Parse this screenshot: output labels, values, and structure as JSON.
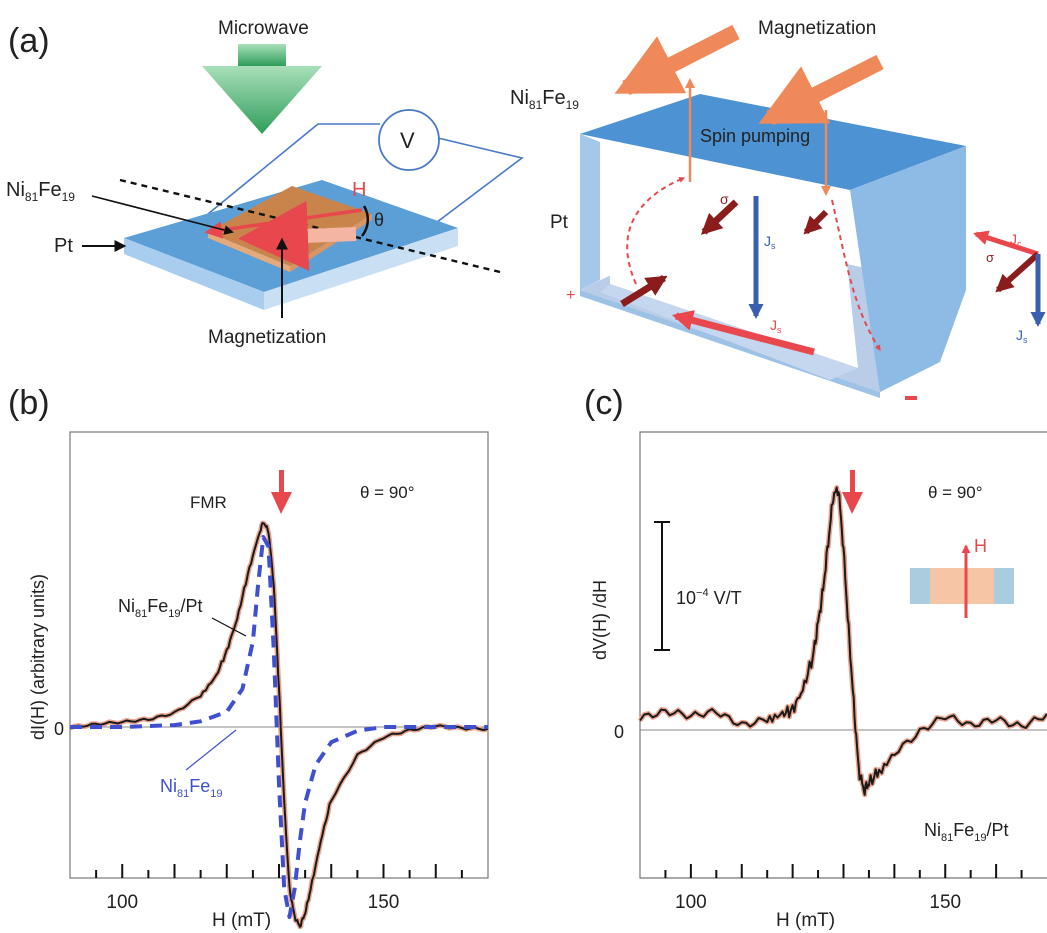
{
  "panels": {
    "a": "(a)",
    "b": "(b)",
    "c": "(c)"
  },
  "diagram_left": {
    "microwave": "Microwave",
    "voltmeter": "V",
    "nife_label": "Ni",
    "nife_sub1": "81",
    "nife_mid": "Fe",
    "nife_sub2": "19",
    "pt_label": "Pt",
    "h_label": "H",
    "theta_label": "θ",
    "magnetization": "Magnetization"
  },
  "diagram_right": {
    "magnetization": "Magnetization",
    "nife_label": "Ni",
    "nife_sub1": "81",
    "nife_mid": "Fe",
    "nife_sub2": "19",
    "spin_pumping": "Spin pumping",
    "pt_label": "Pt",
    "sigma": "σ",
    "js": "J",
    "js_sub": "s",
    "jc": "J",
    "jc_sub": "c",
    "plus": "+",
    "minus": "−"
  },
  "colors": {
    "blue_layer": "#5b9fd6",
    "blue_light": "#a8cdee",
    "orange_arrow": "#f0895a",
    "red_arrow": "#e8484d",
    "dark_red": "#8a1c1c",
    "spin_blue": "#3a5fb0",
    "green": "#3dae6a",
    "dashed_fit": "#3f4fd0"
  },
  "chart_data": [
    {
      "type": "line",
      "panel": "b",
      "xlabel": "H (mT)",
      "ylabel": "dI(H) (arbitrary units)",
      "xlim": [
        90,
        170
      ],
      "x_ticks": [
        100,
        150
      ],
      "y_tick_label": "0",
      "annotation_theta": "θ = 90°",
      "annotation_fmr": "FMR",
      "fmr_arrow_x": 130,
      "series": [
        {
          "name": "Ni81Fe19/Pt",
          "label_main": "Ni",
          "label_sub1": "81",
          "label_mid": "Fe",
          "label_sub2": "19",
          "label_tail": "/Pt",
          "style": "solid",
          "x": [
            90,
            95,
            100,
            105,
            110,
            115,
            118,
            120,
            122,
            124,
            126,
            127,
            128,
            129,
            130,
            131,
            132,
            133,
            134,
            135,
            136,
            138,
            140,
            145,
            150,
            155,
            160,
            165,
            170
          ],
          "y": [
            0.0,
            0.01,
            0.02,
            0.04,
            0.08,
            0.17,
            0.27,
            0.4,
            0.57,
            0.8,
            1.0,
            1.08,
            1.03,
            0.75,
            0.2,
            -0.4,
            -0.85,
            -1.0,
            -1.05,
            -0.98,
            -0.86,
            -0.6,
            -0.38,
            -0.15,
            -0.06,
            -0.02,
            0.01,
            0.0,
            -0.01
          ]
        },
        {
          "name": "Ni81Fe19",
          "label_main": "Ni",
          "label_sub1": "81",
          "label_mid": "Fe",
          "label_sub2": "19",
          "label_tail": "",
          "style": "dashed",
          "x": [
            90,
            100,
            110,
            115,
            120,
            123,
            125,
            126,
            127,
            128,
            129,
            130,
            131,
            132,
            133,
            134,
            135,
            137,
            140,
            145,
            150,
            160,
            170
          ],
          "y": [
            0.0,
            0.0,
            0.01,
            0.03,
            0.08,
            0.2,
            0.45,
            0.75,
            1.0,
            0.95,
            0.4,
            -0.3,
            -0.85,
            -1.0,
            -0.85,
            -0.6,
            -0.4,
            -0.2,
            -0.08,
            -0.02,
            0.0,
            0.0,
            0.0
          ]
        }
      ]
    },
    {
      "type": "line",
      "panel": "c",
      "xlabel": "H (mT)",
      "ylabel": "dV(H) /dH",
      "xlim": [
        90,
        170
      ],
      "x_ticks": [
        100,
        150
      ],
      "y_tick_label": "0",
      "annotation_theta": "θ = 90°",
      "scale_bar_label": "10",
      "scale_bar_exp": "−4",
      "scale_bar_unit": " V/T",
      "inset_h": "H",
      "fmr_arrow_x": 130,
      "series": [
        {
          "name": "Ni81Fe19/Pt",
          "label_main": "Ni",
          "label_sub1": "81",
          "label_mid": "Fe",
          "label_sub2": "19",
          "label_tail": "/Pt",
          "style": "solid",
          "x": [
            90,
            95,
            100,
            105,
            110,
            115,
            118,
            120,
            122,
            124,
            125,
            126,
            127,
            128,
            129,
            130,
            131,
            132,
            133,
            134,
            135,
            137,
            140,
            145,
            150,
            155,
            160,
            165,
            170
          ],
          "y": [
            0.1,
            0.12,
            0.08,
            0.14,
            0.06,
            0.1,
            0.12,
            0.15,
            0.3,
            0.55,
            0.8,
            1.05,
            1.4,
            1.75,
            1.8,
            1.35,
            0.75,
            0.2,
            -0.3,
            -0.45,
            -0.4,
            -0.3,
            -0.15,
            -0.02,
            0.08,
            0.02,
            0.1,
            0.05,
            0.12
          ]
        }
      ]
    }
  ]
}
